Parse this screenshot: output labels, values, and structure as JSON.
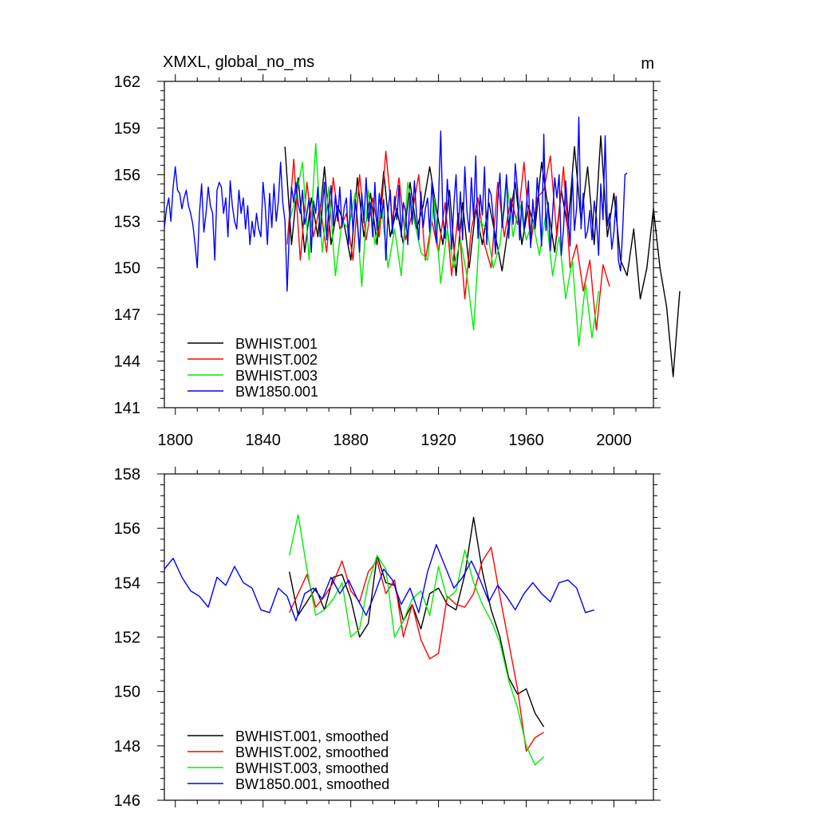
{
  "colors": {
    "BWHIST.001": "#000000",
    "BWHIST.002": "#ff0000",
    "BWHIST.003": "#00ee00",
    "BW1850.001": "#0000ff"
  },
  "chart_data": [
    {
      "type": "line",
      "title": "XMXL, global_no_ms",
      "units": "m",
      "xlim": [
        1795,
        2018
      ],
      "ylim": [
        141,
        162
      ],
      "xticks": [
        1800,
        1840,
        1880,
        1920,
        1960,
        2000
      ],
      "yticks": [
        141,
        144,
        147,
        150,
        153,
        156,
        159,
        162
      ],
      "legend_placement": "bottom-left",
      "series": [
        {
          "name": "BWHIST.001",
          "color": "#000000",
          "x_start": 1850,
          "x_step": 3,
          "values": [
            157.8,
            151.5,
            155.8,
            151.0,
            154.5,
            152.0,
            156.5,
            151.5,
            154.0,
            152.8,
            150.5,
            155.8,
            152.0,
            154.8,
            151.5,
            156.2,
            152.0,
            153.8,
            151.5,
            155.5,
            152.5,
            154.0,
            156.5,
            153.8,
            151.5,
            155.0,
            149.5,
            154.2,
            150.0,
            153.8,
            151.5,
            154.2,
            152.0,
            149.8,
            152.8,
            155.5,
            151.5,
            154.0,
            152.5,
            156.8,
            153.8,
            151.0,
            155.0,
            152.5,
            157.8,
            153.0,
            156.5,
            151.5,
            158.5,
            152.0,
            154.8,
            150.5,
            149.5,
            152.5,
            148.0,
            150.0,
            153.8,
            150.0,
            147.5,
            143.0,
            148.5
          ]
        },
        {
          "name": "BWHIST.002",
          "color": "#ff0000",
          "x_start": 1851,
          "x_step": 3,
          "values": [
            151.5,
            157.0,
            150.5,
            155.5,
            152.0,
            154.0,
            151.0,
            155.8,
            152.5,
            153.5,
            150.5,
            156.0,
            151.8,
            154.5,
            152.0,
            157.5,
            153.0,
            155.8,
            151.8,
            153.5,
            156.0,
            150.5,
            153.0,
            151.0,
            154.2,
            149.5,
            153.5,
            148.0,
            152.5,
            154.5,
            151.5,
            150.0,
            155.5,
            152.0,
            154.5,
            152.8,
            156.8,
            151.5,
            154.5,
            155.0,
            157.2,
            152.0,
            156.5,
            150.0,
            151.5,
            148.5,
            150.5,
            146.0,
            150.2,
            148.8
          ]
        },
        {
          "name": "BWHIST.003",
          "color": "#00ee00",
          "x_start": 1852,
          "x_step": 3,
          "values": [
            153.0,
            154.5,
            156.8,
            150.5,
            158.0,
            151.0,
            155.2,
            149.5,
            153.0,
            152.5,
            154.8,
            148.8,
            155.0,
            151.5,
            154.0,
            150.0,
            152.5,
            149.5,
            155.5,
            153.0,
            151.0,
            150.5,
            154.5,
            149.0,
            152.5,
            150.0,
            151.8,
            149.5,
            146.0,
            153.0,
            152.5,
            150.0,
            151.5,
            155.8,
            152.0,
            154.2,
            151.8,
            153.0,
            150.8,
            153.5,
            149.5,
            152.0,
            148.0,
            150.5,
            145.0,
            149.0,
            145.5,
            148.5
          ]
        },
        {
          "name": "BW1850.001",
          "color": "#0000ff",
          "x_start": 1795,
          "x_step": 1,
          "values": [
            152.6,
            153.8,
            154.5,
            153.0,
            155.2,
            156.5,
            155.0,
            154.8,
            153.8,
            154.5,
            155.0,
            154.0,
            153.5,
            152.8,
            151.5,
            150.0,
            153.5,
            155.4,
            152.3,
            153.5,
            155.2,
            154.0,
            153.5,
            150.5,
            155.0,
            155.5,
            155.2,
            153.5,
            154.5,
            152.0,
            155.6,
            154.0,
            153.0,
            152.5,
            155.0,
            153.5,
            154.5,
            152.5,
            154.0,
            151.5,
            153.0,
            152.0,
            153.5,
            152.5,
            152.0,
            155.5,
            154.0,
            151.5,
            154.8,
            152.6,
            155.4,
            153.0,
            154.3,
            156.8,
            154.2,
            153.0,
            148.5,
            152.4,
            155.2,
            154.2,
            155.5,
            154.1,
            153.5,
            155.0,
            152.8,
            153.5,
            154.5,
            151.0,
            154.3,
            153.5,
            155.2,
            152.0,
            153.8,
            155.5,
            151.8,
            154.0,
            155.3,
            152.7,
            154.7,
            153.0,
            155.2,
            152.6,
            153.9,
            154.5,
            151.5,
            155.0,
            152.3,
            154.4,
            153.1,
            151.0,
            154.8,
            152.9,
            155.8,
            153.0,
            154.2,
            152.0,
            155.5,
            152.4,
            154.8,
            153.2,
            154.4,
            150.5,
            153.6,
            155.0,
            152.2,
            154.6,
            153.1,
            155.3,
            152.0,
            154.2,
            153.6,
            151.5,
            154.8,
            152.8,
            155.6,
            153.4,
            151.8,
            154.9,
            152.6,
            153.8,
            154.5,
            152.3,
            155.6,
            153.3,
            151.6,
            154.4,
            158.8,
            153.2,
            151.9,
            155.7,
            153.6,
            151.2,
            154.1,
            156.0,
            152.4,
            154.9,
            151.8,
            156.5,
            153.6,
            152.3,
            155.8,
            153.2,
            157.2,
            151.9,
            154.7,
            153.4,
            156.5,
            151.5,
            155.1,
            154.7,
            153.2,
            150.9,
            154.3,
            156.1,
            152.6,
            153.9,
            156.0,
            151.9,
            154.4,
            152.8,
            156.7,
            155.1,
            151.8,
            154.3,
            152.4,
            153.9,
            155.6,
            151.3,
            154.4,
            152.7,
            155.8,
            153.9,
            151.4,
            158.6,
            152.4,
            154.2,
            151.1,
            153.5,
            155.8,
            154.5,
            156.0,
            150.8,
            152.5,
            155.6,
            153.4,
            151.4,
            156.1,
            152.4,
            153.9,
            159.7,
            152.5,
            154.8,
            151.9,
            152.4,
            153.7,
            151.8,
            154.3,
            153.2,
            150.8,
            155.4,
            153.1,
            158.5,
            152.7,
            153.5,
            151.2,
            152.3,
            154.6,
            150.5,
            149.8,
            152.5,
            156.0,
            156.1
          ]
        }
      ]
    },
    {
      "type": "line",
      "xlim": [
        1795,
        2018
      ],
      "ylim": [
        146,
        158
      ],
      "yticks": [
        146,
        148,
        150,
        152,
        154,
        156,
        158
      ],
      "legend_placement": "bottom-left",
      "series": [
        {
          "name": "BWHIST.001, smoothed",
          "color": "#000000",
          "x_start": 1852,
          "x_step": 4,
          "values": [
            154.4,
            152.8,
            153.3,
            153.8,
            153.0,
            154.2,
            154.3,
            153.4,
            152.0,
            152.5,
            155.0,
            154.0,
            153.9,
            152.6,
            153.2,
            152.3,
            153.6,
            153.8,
            153.2,
            153.0,
            154.3,
            156.4,
            154.4,
            153.0,
            152.0,
            150.5,
            149.9,
            150.1,
            149.2,
            148.7
          ]
        },
        {
          "name": "BWHIST.002, smoothed",
          "color": "#ff0000",
          "x_start": 1852,
          "x_step": 4,
          "values": [
            152.9,
            153.6,
            154.3,
            153.1,
            153.5,
            154.0,
            154.8,
            153.7,
            153.3,
            154.4,
            154.8,
            153.6,
            154.1,
            152.0,
            153.2,
            151.9,
            151.2,
            151.4,
            153.5,
            153.2,
            153.1,
            153.6,
            154.8,
            155.3,
            153.5,
            151.8,
            150.1,
            147.8,
            148.3,
            148.5
          ]
        },
        {
          "name": "BWHIST.003, smoothed",
          "color": "#00ee00",
          "x_start": 1852,
          "x_step": 4,
          "values": [
            155.0,
            156.5,
            154.5,
            152.8,
            153.0,
            153.4,
            154.0,
            152.0,
            152.3,
            154.0,
            155.0,
            154.5,
            152.0,
            152.6,
            153.4,
            153.7,
            152.8,
            154.6,
            153.4,
            153.7,
            155.2,
            154.0,
            153.2,
            152.6,
            151.8,
            150.4,
            149.4,
            148.0,
            147.3,
            147.6
          ]
        },
        {
          "name": "BW1850.001, smoothed",
          "color": "#0000ff",
          "x_start": 1795,
          "x_step": 4,
          "values": [
            154.5,
            154.9,
            154.2,
            153.7,
            153.5,
            153.1,
            154.2,
            153.9,
            154.6,
            154.0,
            153.8,
            153.0,
            152.9,
            153.8,
            153.5,
            152.6,
            153.6,
            153.8,
            153.4,
            154.2,
            153.6,
            154.1,
            153.4,
            152.8,
            153.6,
            154.5,
            154.1,
            153.2,
            153.8,
            152.9,
            154.4,
            155.4,
            154.6,
            153.8,
            154.2,
            154.8,
            154.1,
            153.3,
            153.9,
            153.5,
            153.0,
            153.6,
            154.0,
            153.6,
            153.3,
            154.0,
            154.1,
            153.8,
            152.9,
            153.0
          ]
        }
      ]
    }
  ]
}
